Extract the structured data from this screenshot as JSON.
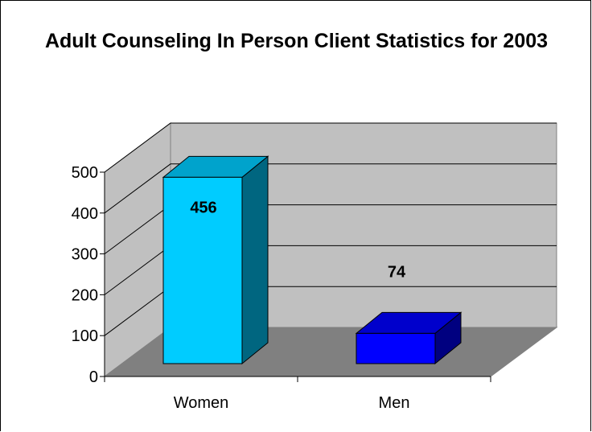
{
  "chart_data": {
    "type": "bar",
    "title": "Adult Counseling In Person Client Statistics for 2003",
    "categories": [
      "Women",
      "Men"
    ],
    "values": [
      456,
      74
    ],
    "data_labels": [
      "456",
      "74"
    ],
    "ylim": [
      0,
      500
    ],
    "yticks": [
      0,
      100,
      200,
      300,
      400,
      500
    ],
    "ytick_labels": [
      "0",
      "100",
      "200",
      "300",
      "400",
      "500"
    ],
    "xlabel": "",
    "ylabel": "",
    "grid": true,
    "style": "3d-column",
    "colors": {
      "wall": "#c0c0c0",
      "floor": "#808080",
      "series": [
        "#00ccff",
        "#0000ff"
      ],
      "series_dark": [
        "#006680",
        "#000080"
      ]
    }
  }
}
